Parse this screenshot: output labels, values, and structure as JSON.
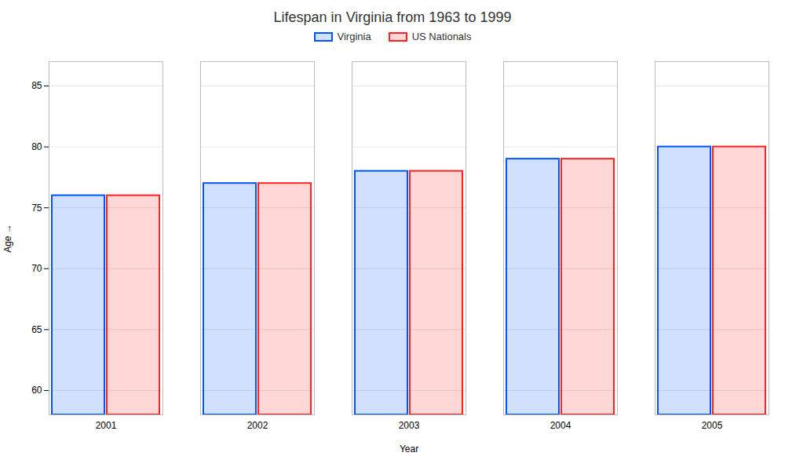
{
  "chart_data": {
    "type": "bar",
    "title": "Lifespan in Virginia from 1963 to 1999",
    "xlabel": "Year",
    "ylabel": "Age",
    "categories": [
      "2001",
      "2002",
      "2003",
      "2004",
      "2005"
    ],
    "series": [
      {
        "name": "Virginia",
        "color": "#0055ff",
        "values": [
          76,
          77,
          78,
          79,
          80
        ]
      },
      {
        "name": "US Nationals",
        "color": "#ff2222",
        "values": [
          76,
          77,
          78,
          79,
          80
        ]
      }
    ],
    "ylim": [
      58,
      87
    ],
    "yticks": [
      60,
      65,
      70,
      75,
      80,
      85
    ],
    "grid": true,
    "legend": "top"
  }
}
